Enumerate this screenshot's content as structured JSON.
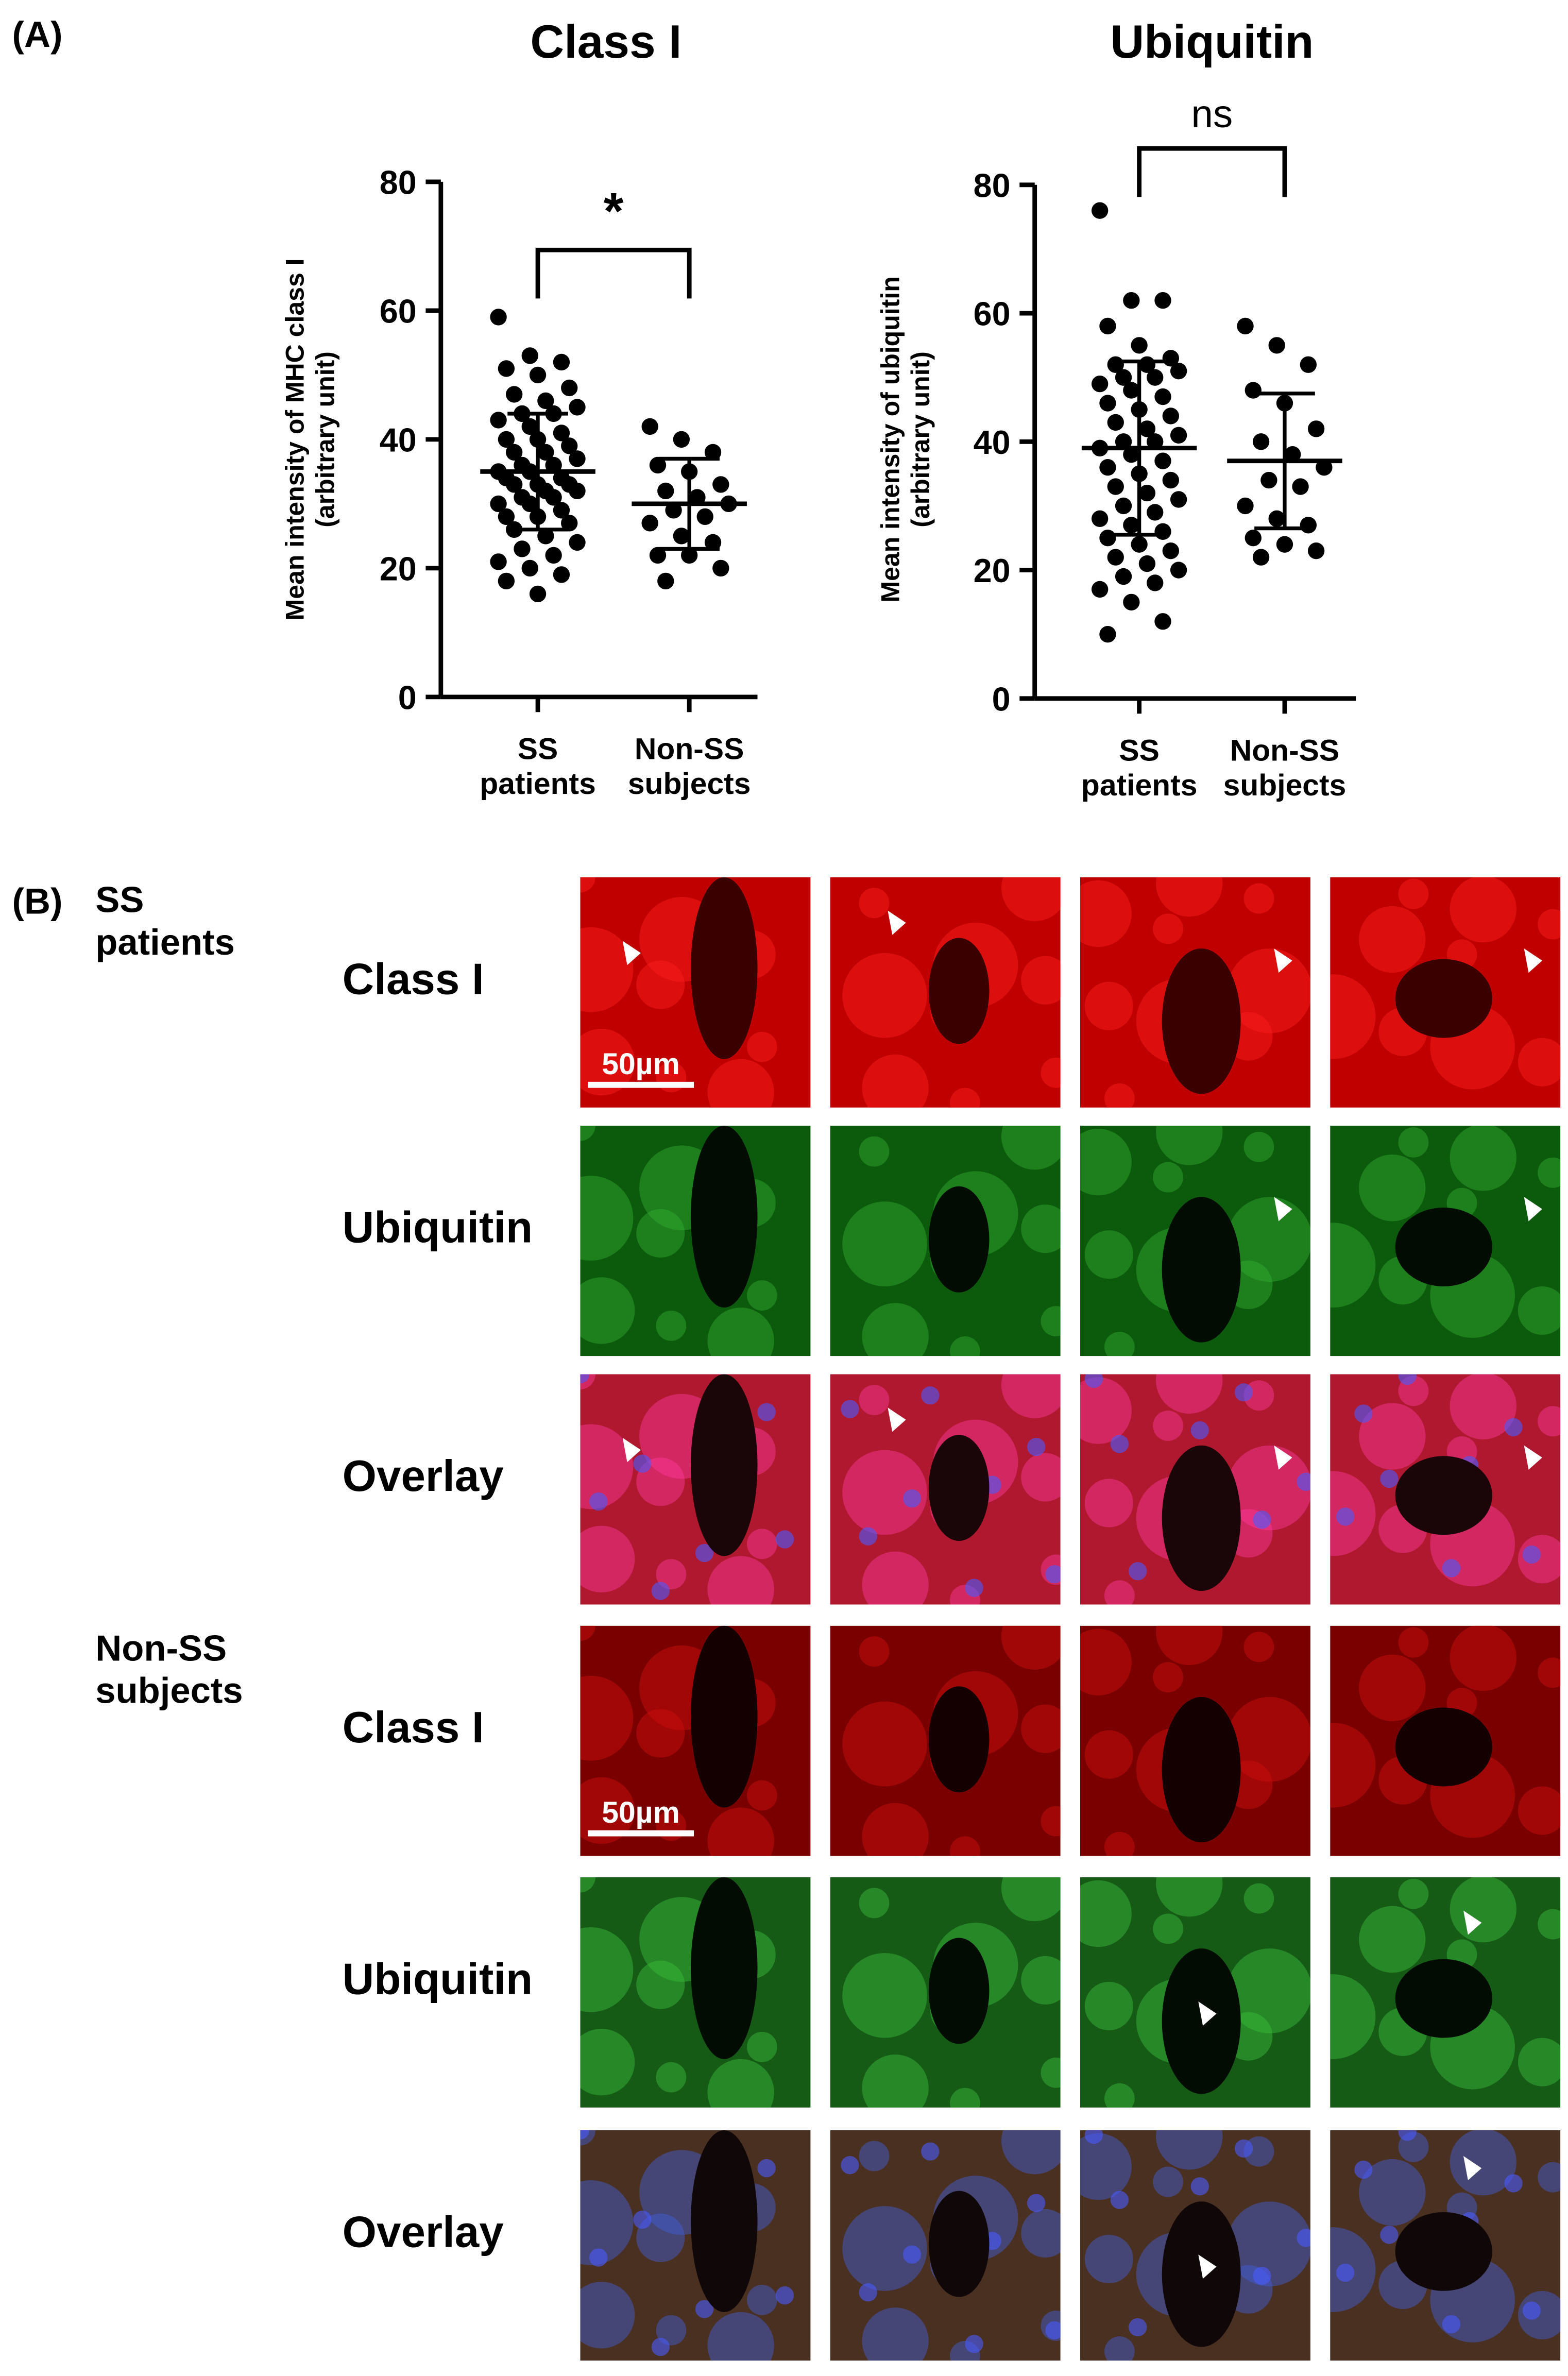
{
  "panel_a_label": "(A)",
  "chart_data": [
    {
      "type": "strip",
      "title": "Class I",
      "ylabel": [
        "Mean intensity of MHC class I",
        "(arbitrary unit)"
      ],
      "categories": [
        "SS patients",
        "Non-SS subjects"
      ],
      "values": [
        [
          59,
          53,
          52,
          51,
          50,
          48,
          47,
          46,
          45,
          44,
          44,
          43,
          42,
          41,
          40,
          40,
          39,
          38,
          38,
          37,
          36,
          36,
          35,
          35,
          34,
          34,
          33,
          33,
          33,
          32,
          32,
          31,
          31,
          30,
          30,
          29,
          28,
          28,
          27,
          26,
          25,
          24,
          23,
          22,
          21,
          20,
          19,
          18,
          16
        ],
        [
          42,
          40,
          38,
          36,
          35,
          33,
          32,
          31,
          30,
          29,
          28,
          27,
          25,
          24,
          22,
          22,
          20,
          18
        ]
      ],
      "mean": [
        35,
        30
      ],
      "sd": [
        9,
        7
      ],
      "color": "#000000",
      "annotation": "*",
      "ylim": [
        0,
        80
      ],
      "yticks": [
        0,
        20,
        40,
        60,
        80
      ]
    },
    {
      "type": "strip",
      "title": "Ubiquitin",
      "ylabel": [
        "Mean intensity of ubiquitin",
        "(arbitrary unit)"
      ],
      "categories": [
        "SS patients",
        "Non-SS subjects"
      ],
      "values": [
        [
          76,
          62,
          62,
          58,
          55,
          53,
          52,
          52,
          51,
          50,
          50,
          49,
          48,
          47,
          46,
          45,
          44,
          43,
          42,
          41,
          40,
          40,
          39,
          38,
          37,
          36,
          35,
          34,
          33,
          32,
          31,
          30,
          29,
          28,
          27,
          26,
          25,
          24,
          23,
          22,
          21,
          20,
          19,
          18,
          17,
          15,
          12,
          10
        ],
        [
          58,
          55,
          52,
          48,
          46,
          42,
          40,
          38,
          36,
          34,
          33,
          30,
          28,
          27,
          25,
          24,
          23,
          22
        ]
      ],
      "mean": [
        39,
        37
      ],
      "sd": [
        13.5,
        10.5
      ],
      "color": "#000000",
      "annotation": "ns",
      "ylim": [
        0,
        80
      ],
      "yticks": [
        0,
        20,
        40,
        60,
        80
      ]
    }
  ],
  "image_panel": {
    "label": "(B)",
    "scale_bar": "50µm",
    "groups": [
      {
        "name": "SS patients",
        "rows": [
          "Class I",
          "Ubiquitin",
          "Overlay"
        ]
      },
      {
        "name": "Non-SS subjects",
        "rows": [
          "Class I",
          "Ubiquitin",
          "Overlay"
        ]
      }
    ]
  }
}
